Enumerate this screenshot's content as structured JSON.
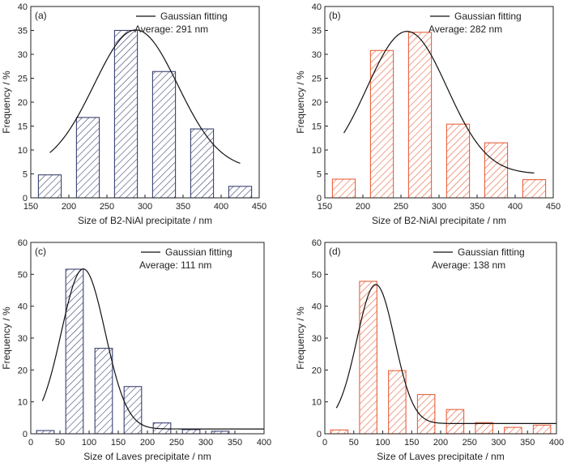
{
  "colors": {
    "blue": "#3b4270",
    "red": "#e8603c",
    "curve": "#111111",
    "axis": "#222222"
  },
  "chart_data": [
    {
      "type": "bar",
      "panel_label": "(a)",
      "color": "#3b4270",
      "xlabel": "Size of B2-NiAl precipitate / nm",
      "ylabel": "Frequency / %",
      "xlim": [
        150,
        450
      ],
      "ylim": [
        0,
        40
      ],
      "xticks": [
        150,
        200,
        250,
        300,
        350,
        400,
        450
      ],
      "yticks": [
        0,
        5,
        10,
        15,
        20,
        25,
        30,
        35,
        40
      ],
      "bars": [
        {
          "x": 175,
          "y": 4.8
        },
        {
          "x": 225,
          "y": 16.8
        },
        {
          "x": 275,
          "y": 35.0
        },
        {
          "x": 325,
          "y": 26.4
        },
        {
          "x": 375,
          "y": 14.4
        },
        {
          "x": 425,
          "y": 2.4
        }
      ],
      "bar_width": 30,
      "fit": {
        "x0": 175,
        "x1": 425,
        "y0": 5.9,
        "A": 29.2,
        "xc": 288,
        "w": 110
      },
      "legend": {
        "line": "Gaussian fitting",
        "average": "Average: 291 nm"
      }
    },
    {
      "type": "bar",
      "panel_label": "(b)",
      "color": "#e8603c",
      "xlabel": "Size of B2-NiAl precipitate / nm",
      "ylabel": "Frequency / %",
      "xlim": [
        150,
        450
      ],
      "ylim": [
        0,
        40
      ],
      "xticks": [
        150,
        200,
        250,
        300,
        350,
        400,
        450
      ],
      "yticks": [
        0,
        5,
        10,
        15,
        20,
        25,
        30,
        35,
        40
      ],
      "bars": [
        {
          "x": 175,
          "y": 3.9
        },
        {
          "x": 225,
          "y": 30.8
        },
        {
          "x": 275,
          "y": 34.6
        },
        {
          "x": 325,
          "y": 15.4
        },
        {
          "x": 375,
          "y": 11.5
        },
        {
          "x": 425,
          "y": 3.8
        }
      ],
      "bar_width": 30,
      "fit": {
        "x0": 175,
        "x1": 425,
        "y0": 5.0,
        "A": 29.8,
        "xc": 258,
        "w": 105
      },
      "legend": {
        "line": "Gaussian fitting",
        "average": "Average: 282 nm"
      }
    },
    {
      "type": "bar",
      "panel_label": "(c)",
      "color": "#3b4270",
      "xlabel": "Size of Laves precipitate /  nm",
      "ylabel": "Frequency / %",
      "xlim": [
        0,
        400
      ],
      "ylim": [
        0,
        60
      ],
      "xticks": [
        0,
        50,
        100,
        150,
        200,
        250,
        300,
        350,
        400
      ],
      "yticks": [
        0,
        10,
        20,
        30,
        40,
        50,
        60
      ],
      "bars": [
        {
          "x": 25,
          "y": 1.0
        },
        {
          "x": 75,
          "y": 51.6
        },
        {
          "x": 125,
          "y": 26.8
        },
        {
          "x": 175,
          "y": 14.8
        },
        {
          "x": 225,
          "y": 3.4
        },
        {
          "x": 275,
          "y": 1.3
        },
        {
          "x": 325,
          "y": 0.8
        }
      ],
      "bar_width": 30,
      "fit": {
        "x0": 20,
        "x1": 400,
        "y0": 1.5,
        "A": 50.2,
        "xc": 90,
        "w": 75
      },
      "legend": {
        "line": "Gaussian fitting",
        "average": "Average: 111 nm"
      }
    },
    {
      "type": "bar",
      "panel_label": "(d)",
      "color": "#e8603c",
      "xlabel": "Size of Laves precipitate /  nm",
      "ylabel": "Frequency / %",
      "xlim": [
        0,
        400
      ],
      "ylim": [
        0,
        60
      ],
      "xticks": [
        0,
        50,
        100,
        150,
        200,
        250,
        300,
        350,
        400
      ],
      "yticks": [
        0,
        10,
        20,
        30,
        40,
        50,
        60
      ],
      "bars": [
        {
          "x": 25,
          "y": 1.2
        },
        {
          "x": 75,
          "y": 47.8
        },
        {
          "x": 125,
          "y": 19.8
        },
        {
          "x": 175,
          "y": 12.3
        },
        {
          "x": 225,
          "y": 7.6
        },
        {
          "x": 275,
          "y": 3.5
        },
        {
          "x": 325,
          "y": 2.0
        },
        {
          "x": 375,
          "y": 2.7
        }
      ],
      "bar_width": 30,
      "fit": {
        "x0": 20,
        "x1": 400,
        "y0": 3.2,
        "A": 43.6,
        "xc": 88,
        "w": 65
      },
      "legend": {
        "line": "Gaussian fitting",
        "average": "Average: 138 nm"
      }
    }
  ]
}
